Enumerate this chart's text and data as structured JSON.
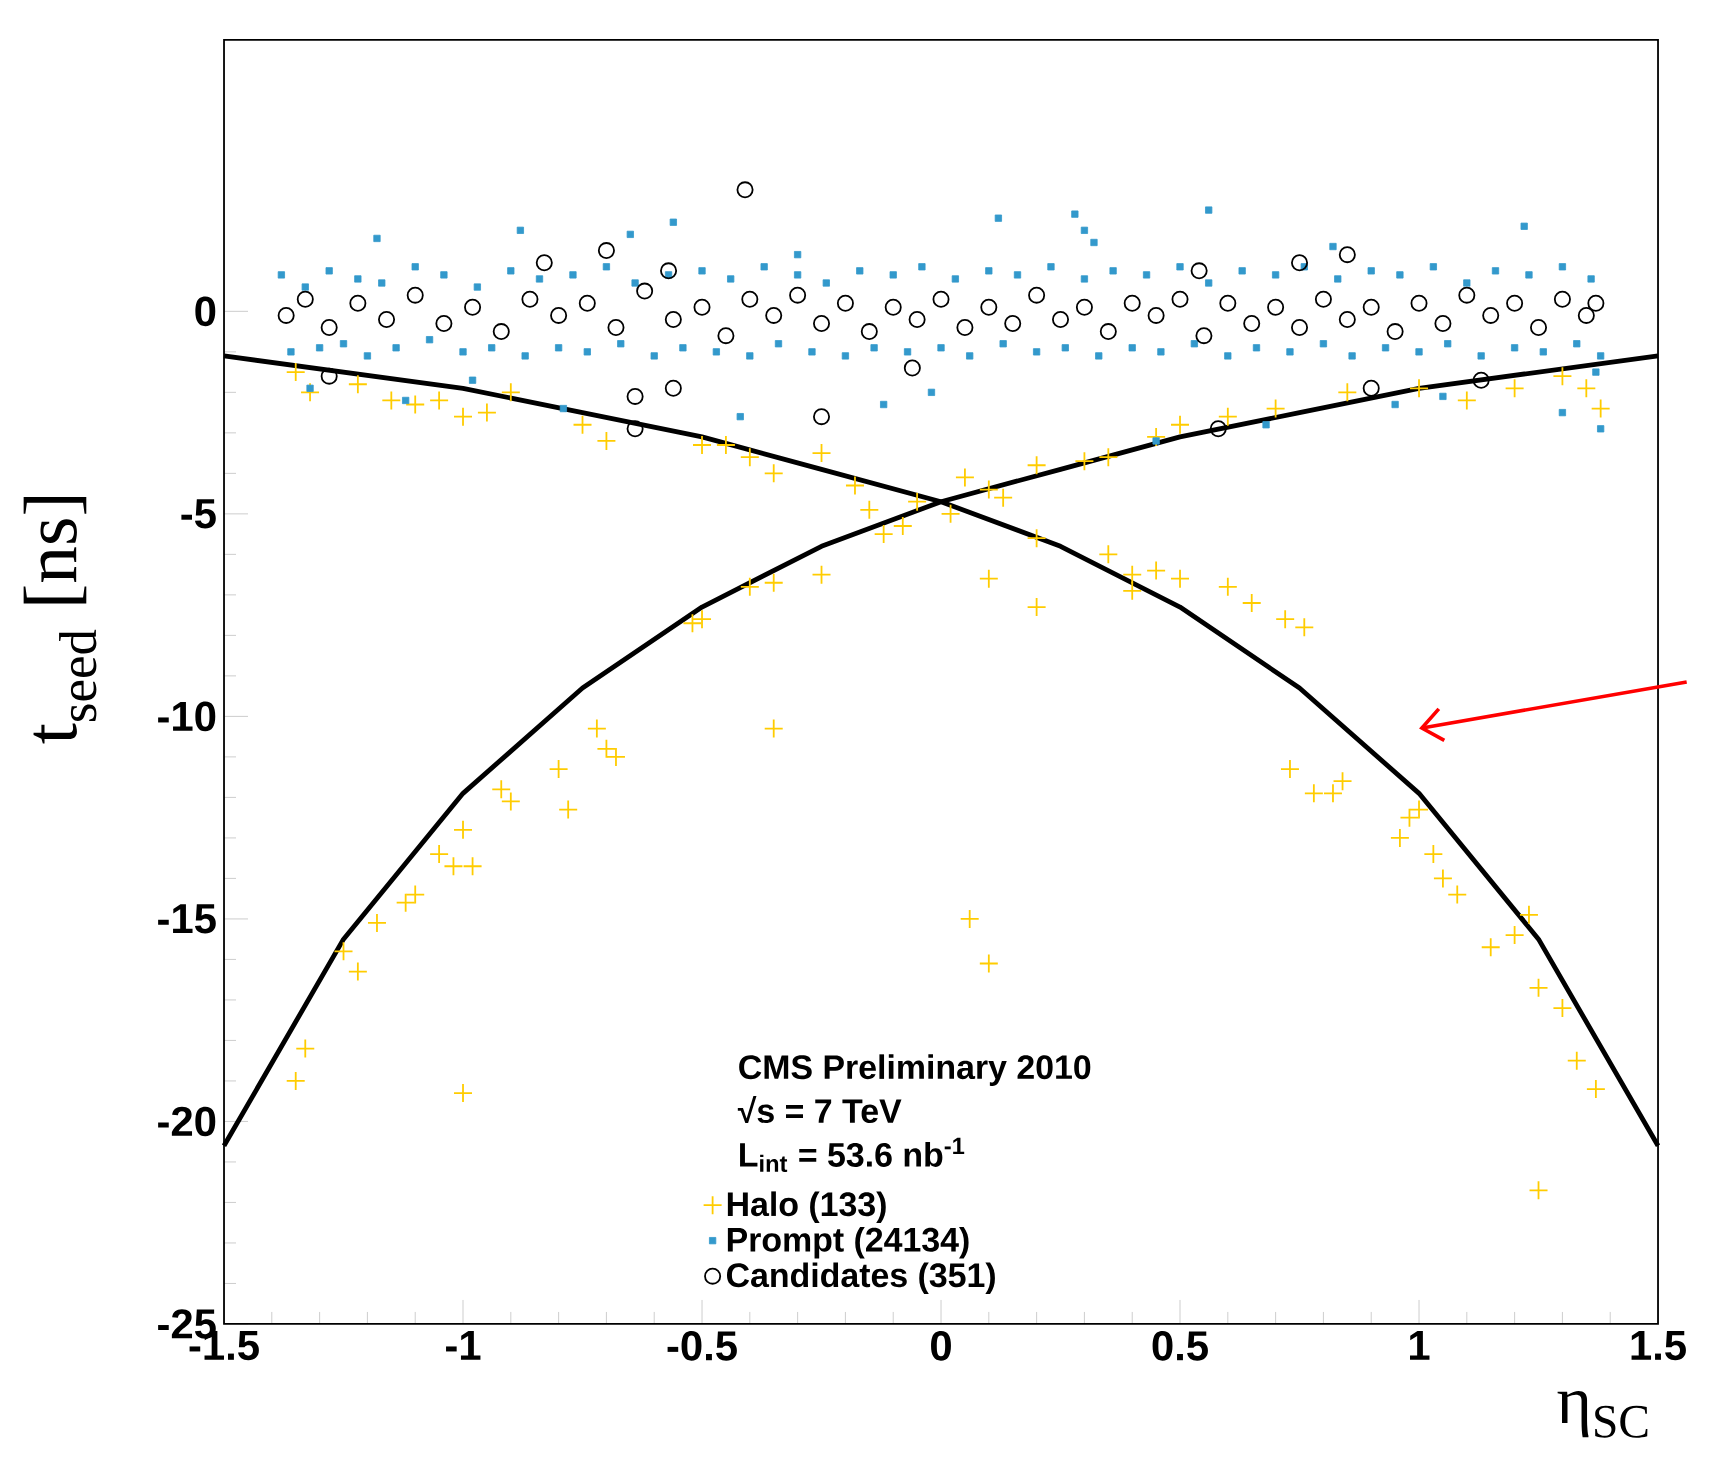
{
  "chart_data": {
    "type": "scatter",
    "xlabel": "η$_{SC}$",
    "ylabel": "t$_{seed}$ [ns]",
    "xlim": [
      -1.5,
      1.5
    ],
    "ylim": [
      -25,
      6.7
    ],
    "xticks": [
      -1.5,
      -1,
      -0.5,
      0,
      0.5,
      1,
      1.5
    ],
    "yticks": [
      -25,
      -20,
      -15,
      -10,
      -5,
      0
    ],
    "legend": "bottom",
    "annotations": [
      "CMS Preliminary 2010",
      "√s = 7 TeV",
      "L$_{int}$ = 53.6 nb$^{-1}$"
    ],
    "series": [
      {
        "name": "Halo (133)",
        "color": "#ffcc00",
        "marker": "cross",
        "x": [
          -1.35,
          -1.32,
          -1.22,
          -1.15,
          -1.1,
          -1.05,
          -1.0,
          -0.95,
          -0.9,
          -0.75,
          -0.7,
          -0.5,
          -0.45,
          -0.4,
          -0.35,
          -0.25,
          -0.18,
          -0.15,
          -0.05,
          0.05,
          0.1,
          0.2,
          0.3,
          0.35,
          0.45,
          0.5,
          0.6,
          0.7,
          0.85,
          1.0,
          1.1,
          1.2,
          1.3,
          1.35,
          1.38,
          0.02,
          0.13,
          0.2,
          0.35,
          0.4,
          0.4,
          0.45,
          0.5,
          0.6,
          0.65,
          0.72,
          0.76,
          0.1,
          0.2,
          0.73,
          0.78,
          0.82,
          0.84,
          0.96,
          0.98,
          1.0,
          1.03,
          1.05,
          1.08,
          1.15,
          1.2,
          1.23,
          1.25,
          1.3,
          1.33,
          1.37,
          1.25,
          0.06,
          0.1,
          -0.52,
          -0.5,
          -0.35,
          -0.4,
          -0.25,
          -0.12,
          -0.08,
          -0.35,
          -0.7,
          -0.72,
          -0.68,
          -0.8,
          -0.78,
          -0.9,
          -0.92,
          -1.0,
          -1.02,
          -0.98,
          -1.05,
          -1.1,
          -1.12,
          -1.18,
          -1.22,
          -1.25,
          -1.33,
          -1.35,
          -1.0
        ],
        "values": [
          -1.5,
          -2.0,
          -1.8,
          -2.2,
          -2.3,
          -2.2,
          -2.6,
          -2.5,
          -2.0,
          -2.8,
          -3.2,
          -3.3,
          -3.3,
          -3.6,
          -4.0,
          -3.5,
          -4.3,
          -4.9,
          -4.7,
          -4.1,
          -4.4,
          -3.8,
          -3.7,
          -3.6,
          -3.1,
          -2.8,
          -2.6,
          -2.4,
          -2.0,
          -1.9,
          -2.2,
          -1.9,
          -1.6,
          -1.9,
          -2.4,
          -5.0,
          -4.6,
          -5.6,
          -6.0,
          -6.5,
          -6.9,
          -6.4,
          -6.6,
          -6.8,
          -7.2,
          -7.6,
          -7.8,
          -6.6,
          -7.3,
          -11.3,
          -11.9,
          -11.9,
          -11.6,
          -13.0,
          -12.5,
          -12.3,
          -13.4,
          -14.0,
          -14.4,
          -15.7,
          -15.4,
          -14.9,
          -16.7,
          -17.2,
          -18.5,
          -19.2,
          -21.7,
          -15.0,
          -16.1,
          -7.7,
          -7.6,
          -6.7,
          -6.8,
          -6.5,
          -5.5,
          -5.3,
          -10.3,
          -10.8,
          -10.3,
          -11.0,
          -11.3,
          -12.3,
          -12.1,
          -11.8,
          -12.8,
          -13.7,
          -13.7,
          -13.4,
          -14.4,
          -14.6,
          -15.1,
          -16.3,
          -15.8,
          -18.2,
          -19.0,
          -19.3
        ]
      },
      {
        "name": "Prompt (24134)",
        "color": "#3399cc",
        "marker": "square",
        "x": [
          -1.38,
          -1.36,
          -1.33,
          -1.3,
          -1.28,
          -1.25,
          -1.22,
          -1.2,
          -1.17,
          -1.14,
          -1.1,
          -1.07,
          -1.04,
          -1.0,
          -0.97,
          -0.94,
          -0.9,
          -0.87,
          -0.84,
          -0.8,
          -0.77,
          -0.74,
          -0.7,
          -0.67,
          -0.64,
          -0.6,
          -0.57,
          -0.54,
          -0.5,
          -0.47,
          -0.44,
          -0.4,
          -0.37,
          -0.34,
          -0.3,
          -0.27,
          -0.24,
          -0.2,
          -0.17,
          -0.14,
          -0.1,
          -0.07,
          -0.04,
          0.0,
          0.03,
          0.06,
          0.1,
          0.13,
          0.16,
          0.2,
          0.23,
          0.26,
          0.3,
          0.33,
          0.36,
          0.4,
          0.43,
          0.46,
          0.5,
          0.53,
          0.56,
          0.6,
          0.63,
          0.66,
          0.7,
          0.73,
          0.76,
          0.8,
          0.83,
          0.86,
          0.9,
          0.93,
          0.96,
          1.0,
          1.03,
          1.06,
          1.1,
          1.13,
          1.16,
          1.2,
          1.23,
          1.26,
          1.3,
          1.33,
          1.36,
          1.38,
          -1.32,
          -1.18,
          -1.12,
          -0.98,
          -0.88,
          -0.79,
          -0.65,
          -0.56,
          -0.42,
          -0.3,
          -0.12,
          -0.02,
          0.12,
          0.28,
          0.3,
          0.32,
          0.45,
          0.56,
          0.68,
          0.82,
          0.95,
          1.05,
          1.22,
          1.3,
          1.38,
          1.37
        ],
        "values": [
          0.9,
          -1.0,
          0.6,
          -0.9,
          1.0,
          -0.8,
          0.8,
          -1.1,
          0.7,
          -0.9,
          1.1,
          -0.7,
          0.9,
          -1.0,
          0.6,
          -0.9,
          1.0,
          -1.1,
          0.8,
          -0.9,
          0.9,
          -1.0,
          1.1,
          -0.8,
          0.7,
          -1.1,
          0.9,
          -0.9,
          1.0,
          -1.0,
          0.8,
          -1.1,
          1.1,
          -0.8,
          0.9,
          -1.0,
          0.7,
          -1.1,
          1.0,
          -0.9,
          0.9,
          -1.0,
          1.1,
          -0.9,
          0.8,
          -1.1,
          1.0,
          -0.8,
          0.9,
          -1.0,
          1.1,
          -0.9,
          0.8,
          -1.1,
          1.0,
          -0.9,
          0.9,
          -1.0,
          1.1,
          -0.8,
          0.7,
          -1.1,
          1.0,
          -0.9,
          0.9,
          -1.0,
          1.1,
          -0.8,
          0.8,
          -1.1,
          1.0,
          -0.9,
          0.9,
          -1.0,
          1.1,
          -0.8,
          0.7,
          -1.1,
          1.0,
          -0.9,
          0.9,
          -1.0,
          1.1,
          -0.8,
          0.8,
          -1.1,
          -1.9,
          1.8,
          -2.2,
          -1.7,
          2.0,
          -2.4,
          1.9,
          2.2,
          -2.6,
          1.4,
          -2.3,
          -2.0,
          2.3,
          2.4,
          2.0,
          1.7,
          -3.2,
          2.5,
          -2.8,
          1.6,
          -2.3,
          -2.1,
          2.1,
          -2.5,
          -2.9,
          -1.5
        ]
      },
      {
        "name": "Candidates (351)",
        "color": "#000000",
        "marker": "circle",
        "x": [
          -1.37,
          -1.33,
          -1.28,
          -1.22,
          -1.16,
          -1.1,
          -1.04,
          -0.98,
          -0.92,
          -0.86,
          -0.8,
          -0.74,
          -0.68,
          -0.62,
          -0.56,
          -0.5,
          -0.45,
          -0.4,
          -0.35,
          -0.3,
          -0.25,
          -0.2,
          -0.15,
          -0.1,
          -0.05,
          0.0,
          0.05,
          0.1,
          0.15,
          0.2,
          0.25,
          0.3,
          0.35,
          0.4,
          0.45,
          0.5,
          0.55,
          0.6,
          0.65,
          0.7,
          0.75,
          0.8,
          0.85,
          0.9,
          0.95,
          1.0,
          1.05,
          1.1,
          1.15,
          1.2,
          1.25,
          1.3,
          1.35,
          1.37,
          -1.28,
          -0.83,
          -0.7,
          -0.57,
          -0.41,
          -0.64,
          -0.64,
          -0.56,
          -0.25,
          -0.06,
          0.54,
          0.58,
          0.75,
          0.85,
          0.9,
          1.13
        ],
        "values": [
          -0.1,
          0.3,
          -0.4,
          0.2,
          -0.2,
          0.4,
          -0.3,
          0.1,
          -0.5,
          0.3,
          -0.1,
          0.2,
          -0.4,
          0.5,
          -0.2,
          0.1,
          -0.6,
          0.3,
          -0.1,
          0.4,
          -0.3,
          0.2,
          -0.5,
          0.1,
          -0.2,
          0.3,
          -0.4,
          0.1,
          -0.3,
          0.4,
          -0.2,
          0.1,
          -0.5,
          0.2,
          -0.1,
          0.3,
          -0.6,
          0.2,
          -0.3,
          0.1,
          -0.4,
          0.3,
          -0.2,
          0.1,
          -0.5,
          0.2,
          -0.3,
          0.4,
          -0.1,
          0.2,
          -0.4,
          0.3,
          -0.1,
          0.2,
          -1.6,
          1.2,
          1.5,
          1.0,
          3.0,
          -2.1,
          -2.9,
          -1.9,
          -2.6,
          -1.4,
          1.0,
          -2.9,
          1.2,
          1.4,
          -1.9,
          -1.7
        ]
      },
      {
        "type": "line",
        "color": "#000000",
        "marker": "none",
        "line_style": "solid",
        "x": [
          -1.5,
          -1.25,
          -1.0,
          -0.75,
          -0.5,
          -0.25,
          0.0,
          0.25,
          0.5,
          0.75,
          1.0,
          1.25,
          1.5
        ],
        "values": [
          -1.1,
          -1.5,
          -1.9,
          -2.5,
          -3.1,
          -3.9,
          -4.7,
          -5.8,
          -7.3,
          -9.3,
          -11.9,
          -15.5,
          -20.6
        ]
      },
      {
        "type": "line",
        "color": "#000000",
        "marker": "none",
        "line_style": "solid",
        "x": [
          -1.5,
          -1.25,
          -1.0,
          -0.75,
          -0.5,
          -0.25,
          0.0,
          0.25,
          0.5,
          0.75,
          1.0,
          1.25,
          1.5
        ],
        "values": [
          -20.6,
          -15.5,
          -11.9,
          -9.3,
          -7.3,
          -5.8,
          -4.7,
          -3.9,
          -3.1,
          -2.5,
          -1.9,
          -1.5,
          -1.1
        ]
      }
    ]
  }
}
